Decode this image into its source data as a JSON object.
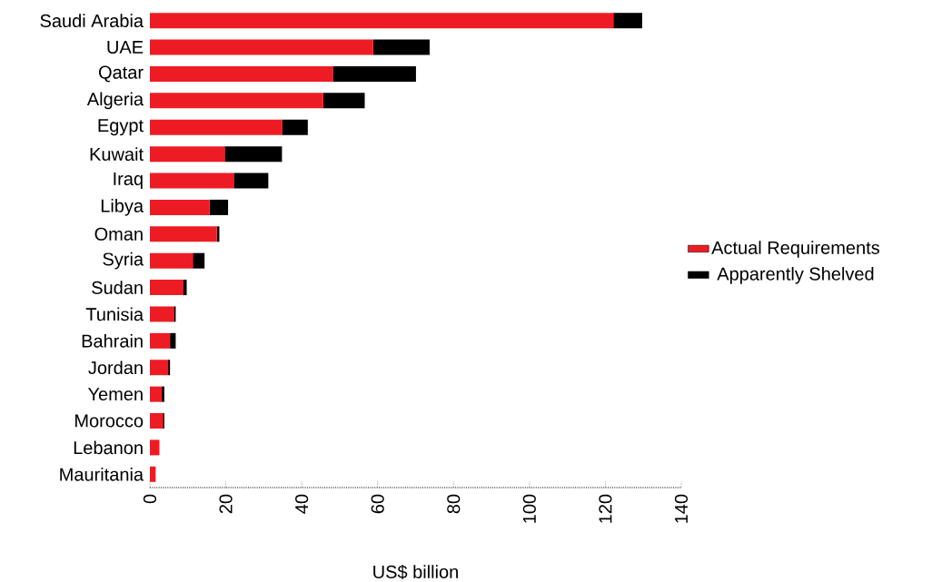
{
  "chart_data": {
    "type": "bar",
    "orientation": "horizontal",
    "stacked": true,
    "xlabel": "US$ billion",
    "categories": [
      "Saudi Arabia",
      "UAE",
      "Qatar",
      "Algeria",
      "Egypt",
      "Kuwait",
      "Iraq",
      "Libya",
      "Oman",
      "Syria",
      "Sudan",
      "Tunisia",
      "Bahrain",
      "Jordan",
      "Yemen",
      "Morocco",
      "Lebanon",
      "Mauritania"
    ],
    "series": [
      {
        "name": "Actual Requirements",
        "color": "#ed1c24",
        "values": [
          122.1,
          58.8,
          48.2,
          45.6,
          34.8,
          19.7,
          22.1,
          15.7,
          17.6,
          11.3,
          8.7,
          6.3,
          5.3,
          4.8,
          3.1,
          3.4,
          2.5,
          1.5
        ]
      },
      {
        "name": "Apparently Shelved",
        "color": "#000000",
        "values": [
          7.6,
          14.9,
          21.9,
          11.0,
          6.8,
          15.1,
          9.1,
          4.9,
          0.7,
          3.1,
          1.0,
          0.5,
          1.5,
          0.5,
          0.7,
          0.4,
          0,
          0
        ]
      }
    ],
    "xlim": [
      0,
      140
    ],
    "xticks": [
      0,
      20,
      40,
      60,
      80,
      100,
      120,
      140
    ],
    "legend": "right"
  }
}
